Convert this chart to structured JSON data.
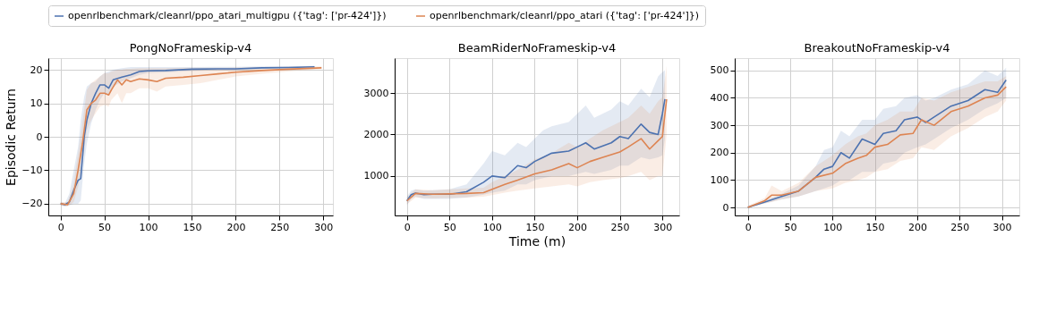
{
  "chart_data": [
    {
      "type": "line",
      "title": "PongNoFrameskip-v4",
      "ylabel": "Episodic Return",
      "xlim": [
        -14,
        311
      ],
      "ylim": [
        -23.5,
        23.5
      ],
      "xticks": [
        0,
        50,
        100,
        150,
        200,
        250,
        300
      ],
      "yticks": [
        -20,
        -10,
        0,
        10,
        20
      ],
      "grid": true,
      "legend": "top",
      "series": [
        {
          "name": "openrlbenchmark/cleanrl/ppo_atari_multigpu ({'tag': ['pr-424']})",
          "color": "#4c72b0",
          "x": [
            0,
            5,
            10,
            15,
            20,
            23,
            27,
            30,
            35,
            40,
            45,
            50,
            55,
            60,
            70,
            80,
            90,
            100,
            120,
            150,
            180,
            200,
            230,
            260,
            290
          ],
          "values": [
            -20,
            -20.3,
            -19.5,
            -16,
            -13,
            -12.5,
            0,
            5,
            10,
            13,
            15.5,
            15.5,
            14.5,
            17,
            17.8,
            18.5,
            19.5,
            19.7,
            19.8,
            20.2,
            20.3,
            20.3,
            20.6,
            20.7,
            20.9
          ],
          "lower": [
            -20.5,
            -20.8,
            -20.5,
            -20,
            -20,
            -19,
            -8,
            -2,
            4,
            8,
            11,
            13,
            12.5,
            15,
            16.5,
            17.5,
            18.5,
            19,
            19.2,
            19.6,
            19.8,
            19.8,
            20.2,
            20.3,
            20.5
          ],
          "upper": [
            -19.5,
            -19.8,
            -17,
            -10,
            -3,
            5,
            12,
            15,
            16,
            16.5,
            18,
            19,
            19.5,
            20,
            20.5,
            20.8,
            20.8,
            20.8,
            20.8,
            20.8,
            20.9,
            20.9,
            21,
            21,
            21.2
          ]
        },
        {
          "name": "openrlbenchmark/cleanrl/ppo_atari ({'tag': ['pr-424']})",
          "color": "#dd8452",
          "x": [
            0,
            8,
            15,
            20,
            25,
            30,
            35,
            40,
            45,
            50,
            55,
            58,
            65,
            70,
            75,
            80,
            90,
            100,
            110,
            120,
            140,
            160,
            180,
            200,
            230,
            260,
            298
          ],
          "values": [
            -20,
            -20.3,
            -17,
            -10,
            -2,
            8,
            10,
            11,
            13,
            13,
            12.5,
            14,
            17,
            15.5,
            17,
            16.5,
            17.3,
            17,
            16.5,
            17.5,
            17.8,
            18.3,
            18.8,
            19.3,
            19.8,
            20.2,
            20.6
          ],
          "lower": [
            -20.5,
            -20.8,
            -19.5,
            -15,
            -8,
            2,
            5,
            7,
            9,
            9.5,
            9,
            11,
            13,
            10,
            13,
            13,
            14.5,
            14.5,
            13.5,
            15,
            15.5,
            16,
            17,
            18,
            18.8,
            19.5,
            20.2
          ],
          "upper": [
            -19.5,
            -19.5,
            -14,
            -5,
            4,
            14,
            16,
            17,
            18,
            19,
            19,
            19.5,
            20,
            20,
            20.3,
            20.3,
            20.5,
            20.5,
            20.5,
            20.5,
            20.6,
            20.6,
            20.6,
            20.7,
            20.8,
            20.9,
            21
          ]
        }
      ]
    },
    {
      "type": "line",
      "title": "BeamRiderNoFrameskip-v4",
      "xlabel": "Time (m)",
      "xlim": [
        -14.4,
        319.8
      ],
      "ylim": [
        50,
        3840
      ],
      "xticks": [
        0,
        50,
        100,
        150,
        200,
        250,
        300
      ],
      "yticks": [
        1000,
        2000,
        3000
      ],
      "grid": true,
      "series": [
        {
          "name": "openrlbenchmark/cleanrl/ppo_atari_multigpu ({'tag': ['pr-424']})",
          "color": "#4c72b0",
          "x": [
            0,
            5,
            10,
            20,
            30,
            50,
            70,
            90,
            100,
            115,
            130,
            140,
            150,
            160,
            170,
            190,
            200,
            210,
            220,
            240,
            250,
            260,
            275,
            285,
            295,
            300,
            303
          ],
          "values": [
            400,
            550,
            590,
            550,
            560,
            560,
            620,
            850,
            1000,
            960,
            1250,
            1200,
            1350,
            1450,
            1550,
            1600,
            1700,
            1800,
            1650,
            1800,
            1950,
            1900,
            2250,
            2050,
            2000,
            2500,
            2850
          ],
          "lower": [
            300,
            450,
            500,
            450,
            450,
            450,
            480,
            550,
            600,
            650,
            800,
            800,
            900,
            950,
            1000,
            1000,
            1050,
            1100,
            1050,
            1150,
            1250,
            1250,
            1450,
            1400,
            1450,
            1500,
            1900
          ],
          "upper": [
            500,
            650,
            680,
            650,
            660,
            680,
            800,
            1300,
            1600,
            1500,
            1800,
            1700,
            1900,
            2100,
            2200,
            2300,
            2500,
            2700,
            2400,
            2600,
            2800,
            2700,
            3100,
            2900,
            3400,
            3500,
            3550
          ]
        },
        {
          "name": "openrlbenchmark/cleanrl/ppo_atari ({'tag': ['pr-424']})",
          "color": "#dd8452",
          "x": [
            0,
            10,
            30,
            50,
            70,
            90,
            100,
            115,
            130,
            150,
            170,
            190,
            200,
            215,
            230,
            250,
            260,
            275,
            285,
            295,
            300,
            305
          ],
          "values": [
            400,
            580,
            560,
            570,
            580,
            600,
            680,
            800,
            900,
            1050,
            1150,
            1300,
            1200,
            1350,
            1450,
            1580,
            1700,
            1900,
            1650,
            1850,
            1950,
            2850
          ],
          "lower": [
            320,
            480,
            460,
            470,
            480,
            500,
            540,
            600,
            650,
            700,
            750,
            800,
            750,
            850,
            900,
            950,
            1000,
            1100,
            900,
            1000,
            1000,
            2000
          ],
          "upper": [
            480,
            680,
            660,
            680,
            700,
            720,
            850,
            1000,
            1150,
            1400,
            1550,
            1800,
            1700,
            1900,
            2100,
            2300,
            2400,
            2700,
            2500,
            2800,
            2900,
            3650
          ]
        }
      ]
    },
    {
      "type": "line",
      "title": "BreakoutNoFrameskip-v4",
      "xlim": [
        -15.5,
        320.6
      ],
      "ylim": [
        -29,
        545
      ],
      "xticks": [
        0,
        50,
        100,
        150,
        200,
        250,
        300
      ],
      "yticks": [
        0,
        100,
        200,
        300,
        400,
        500
      ],
      "grid": true,
      "series": [
        {
          "name": "openrlbenchmark/cleanrl/ppo_atari_multigpu ({'tag': ['pr-424']})",
          "color": "#4c72b0",
          "x": [
            0,
            20,
            40,
            60,
            80,
            90,
            100,
            110,
            120,
            135,
            150,
            160,
            175,
            185,
            200,
            210,
            220,
            240,
            260,
            280,
            295,
            305
          ],
          "values": [
            0,
            20,
            40,
            60,
            110,
            140,
            150,
            200,
            180,
            250,
            230,
            270,
            280,
            320,
            330,
            310,
            330,
            370,
            390,
            430,
            420,
            465
          ],
          "lower": [
            0,
            15,
            30,
            40,
            60,
            70,
            80,
            100,
            100,
            130,
            130,
            160,
            170,
            200,
            220,
            230,
            250,
            290,
            320,
            360,
            380,
            400
          ],
          "upper": [
            5,
            25,
            50,
            80,
            150,
            210,
            220,
            280,
            260,
            320,
            320,
            360,
            370,
            400,
            410,
            390,
            400,
            430,
            450,
            500,
            480,
            510
          ]
        },
        {
          "name": "openrlbenchmark/cleanrl/ppo_atari ({'tag': ['pr-424']})",
          "color": "#dd8452",
          "x": [
            0,
            20,
            28,
            40,
            60,
            80,
            100,
            115,
            130,
            140,
            150,
            165,
            180,
            195,
            205,
            220,
            240,
            260,
            280,
            295,
            305
          ],
          "values": [
            0,
            25,
            45,
            45,
            60,
            110,
            125,
            160,
            180,
            190,
            220,
            230,
            265,
            270,
            320,
            300,
            350,
            370,
            400,
            410,
            440
          ],
          "lower": [
            0,
            15,
            20,
            30,
            40,
            60,
            70,
            90,
            100,
            110,
            130,
            140,
            170,
            180,
            220,
            210,
            260,
            290,
            330,
            350,
            390
          ],
          "upper": [
            5,
            35,
            80,
            60,
            90,
            150,
            190,
            230,
            260,
            270,
            300,
            320,
            350,
            350,
            400,
            390,
            420,
            440,
            460,
            460,
            480
          ]
        }
      ]
    }
  ]
}
